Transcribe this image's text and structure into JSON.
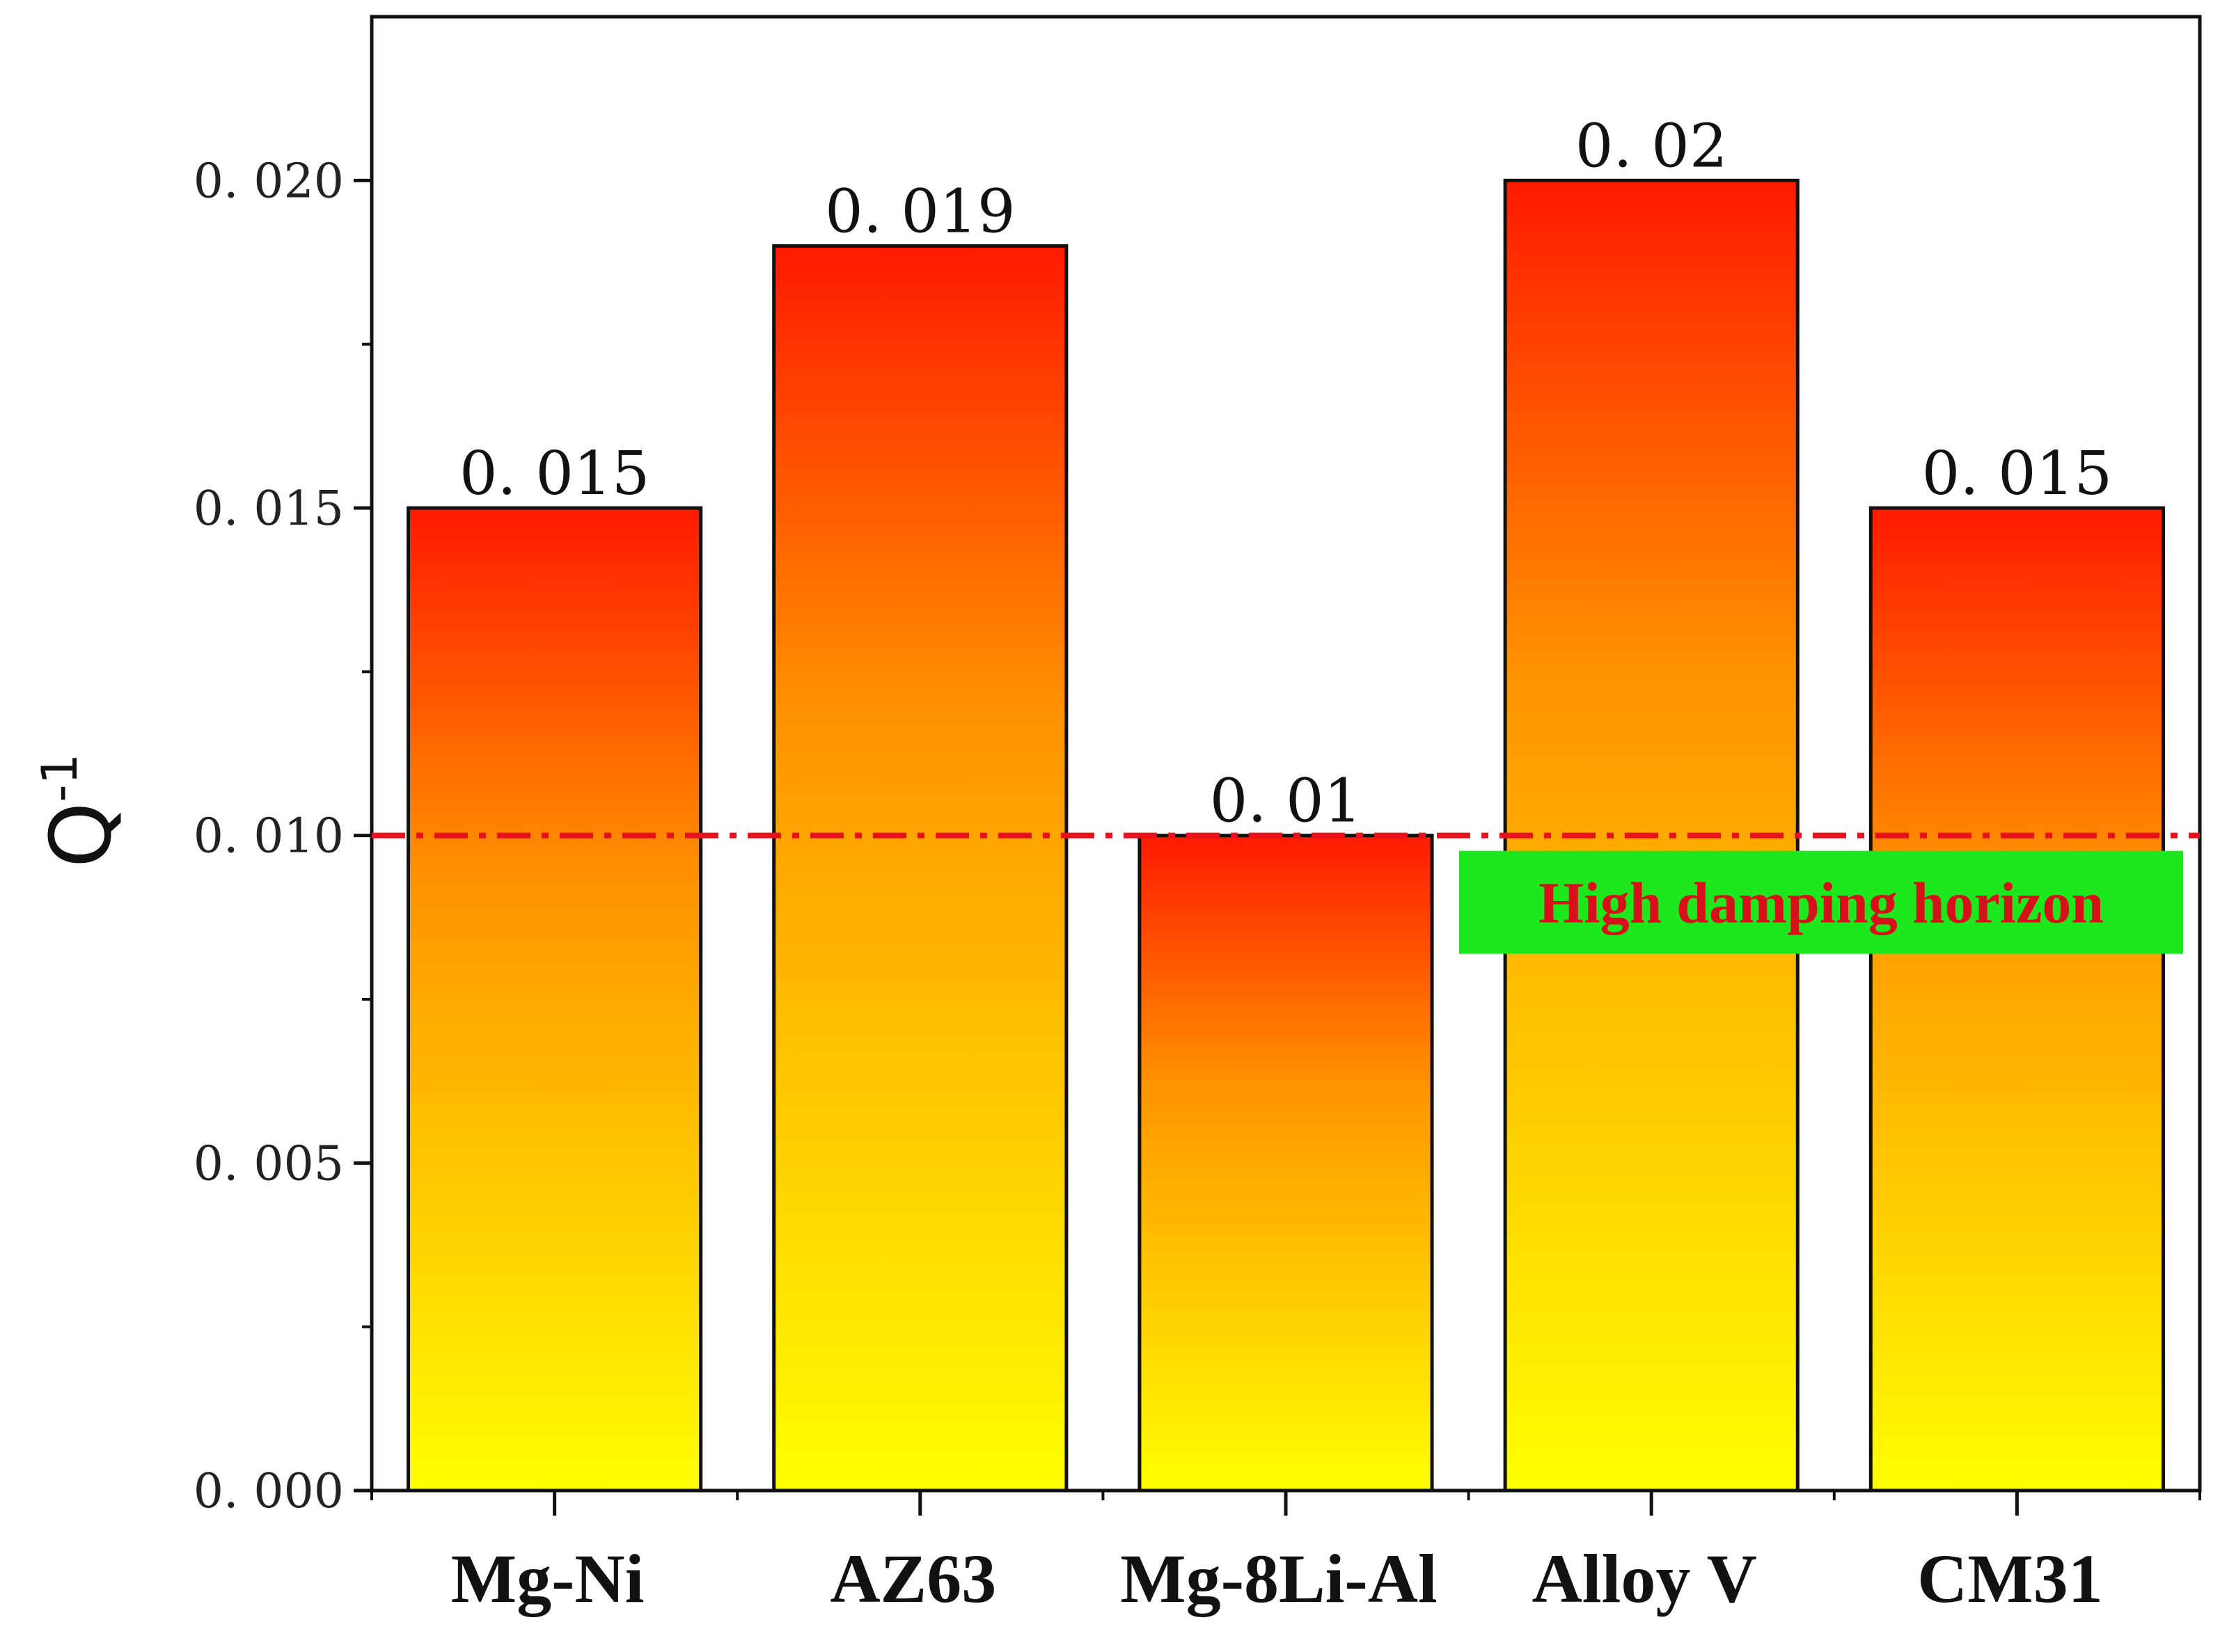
{
  "chart_data": {
    "type": "bar",
    "title": "",
    "xlabel": "",
    "ylabel": "Q",
    "ylabel_superscript": "-1",
    "categories": [
      "Mg-Ni",
      "AZ63",
      "Mg-8Li-Al",
      "Alloy V",
      "CM31"
    ],
    "values": [
      0.015,
      0.019,
      0.01,
      0.02,
      0.015
    ],
    "data_labels": [
      "0. 015",
      "0. 019",
      "0. 01",
      "0. 02",
      "0. 015"
    ],
    "ylim": [
      0,
      0.0225
    ],
    "yticks": [
      0,
      0.005,
      0.01,
      0.015,
      0.02
    ],
    "ytick_labels": [
      "0. 000",
      "0. 005",
      "0. 010",
      "0. 015",
      "0. 020"
    ],
    "grid": false,
    "bar_gradient": {
      "top": "#ff1a00",
      "mid": "#ff9400",
      "bottom": "#ffff00"
    },
    "reference_line": {
      "value": 0.01,
      "style": "dash-dot",
      "color": "#e8101a",
      "label": "High damping horizon",
      "label_color": "#d8101a",
      "label_background": "#1de81d"
    }
  }
}
